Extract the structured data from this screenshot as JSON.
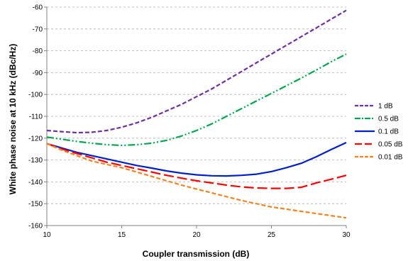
{
  "chart_data": {
    "type": "line",
    "title": "",
    "xlabel": "Coupler transmission (dB)",
    "ylabel": "White phase noise at 10 kHz (dBc/Hz)",
    "xlim": [
      10,
      30
    ],
    "ylim": [
      -160,
      -60
    ],
    "xticks": [
      10,
      15,
      20,
      25,
      30
    ],
    "yticks": [
      -160,
      -150,
      -140,
      -130,
      -120,
      -110,
      -100,
      -90,
      -80,
      -70,
      -60
    ],
    "grid": "horizontal dashed",
    "legend_position": "right",
    "series": [
      {
        "name": "1 dB",
        "color": "#7030a0",
        "style": "dashed",
        "x": [
          10,
          11,
          12,
          13,
          14,
          15,
          16,
          17,
          18,
          19,
          20,
          21,
          22,
          23,
          24,
          25,
          26,
          27,
          28,
          29,
          30
        ],
        "y": [
          -116.5,
          -117,
          -117.5,
          -117.3,
          -116.5,
          -115,
          -113,
          -110.5,
          -107.5,
          -104.5,
          -101,
          -97.5,
          -93.5,
          -89.5,
          -85.5,
          -81.5,
          -77.5,
          -73.5,
          -69.5,
          -65.5,
          -61.5
        ]
      },
      {
        "name": "0.5 dB",
        "color": "#00a550",
        "style": "dash-dot-dot",
        "x": [
          10,
          11,
          12,
          13,
          14,
          15,
          16,
          17,
          18,
          19,
          20,
          21,
          22,
          23,
          24,
          25,
          26,
          27,
          28,
          29,
          30
        ],
        "y": [
          -119.5,
          -120.5,
          -121.5,
          -122.3,
          -123,
          -123.3,
          -123,
          -122.3,
          -121,
          -119,
          -116.5,
          -113.5,
          -110,
          -106.5,
          -103,
          -99.5,
          -96,
          -92.5,
          -88.8,
          -85,
          -81.5
        ]
      },
      {
        "name": "0.1 dB",
        "color": "#0020c8",
        "style": "solid",
        "x": [
          10,
          11,
          12,
          13,
          14,
          15,
          16,
          17,
          18,
          19,
          20,
          21,
          22,
          23,
          24,
          25,
          26,
          27,
          28,
          29,
          30
        ],
        "y": [
          -122.5,
          -124.5,
          -126.5,
          -128,
          -129.5,
          -131,
          -132.5,
          -133.7,
          -135,
          -136,
          -136.8,
          -137.2,
          -137.3,
          -137,
          -136.5,
          -135.3,
          -133.5,
          -131.5,
          -128.5,
          -125.2,
          -122
        ]
      },
      {
        "name": "0.05 dB",
        "color": "#ff0000",
        "style": "long-dash",
        "x": [
          10,
          11,
          12,
          13,
          14,
          15,
          16,
          17,
          18,
          19,
          20,
          21,
          22,
          23,
          24,
          25,
          26,
          27,
          28,
          29,
          30
        ],
        "y": [
          -122.5,
          -125,
          -127,
          -129,
          -131,
          -132.5,
          -134,
          -135.5,
          -137,
          -138.3,
          -139.5,
          -140.5,
          -141.5,
          -142.3,
          -142.8,
          -143,
          -143,
          -142.5,
          -140.5,
          -138.8,
          -137
        ]
      },
      {
        "name": "0.01 dB",
        "color": "#f58220",
        "style": "dashed",
        "x": [
          10,
          11,
          12,
          13,
          14,
          15,
          16,
          17,
          18,
          19,
          20,
          21,
          22,
          23,
          24,
          25,
          26,
          27,
          28,
          29,
          30
        ],
        "y": [
          -122.5,
          -125.5,
          -128,
          -130.5,
          -132,
          -133.5,
          -135.5,
          -137.5,
          -139.5,
          -141.5,
          -143.3,
          -145,
          -146.8,
          -148.5,
          -150,
          -151.5,
          -152.5,
          -153.5,
          -154.5,
          -155.5,
          -156.5
        ]
      }
    ]
  }
}
